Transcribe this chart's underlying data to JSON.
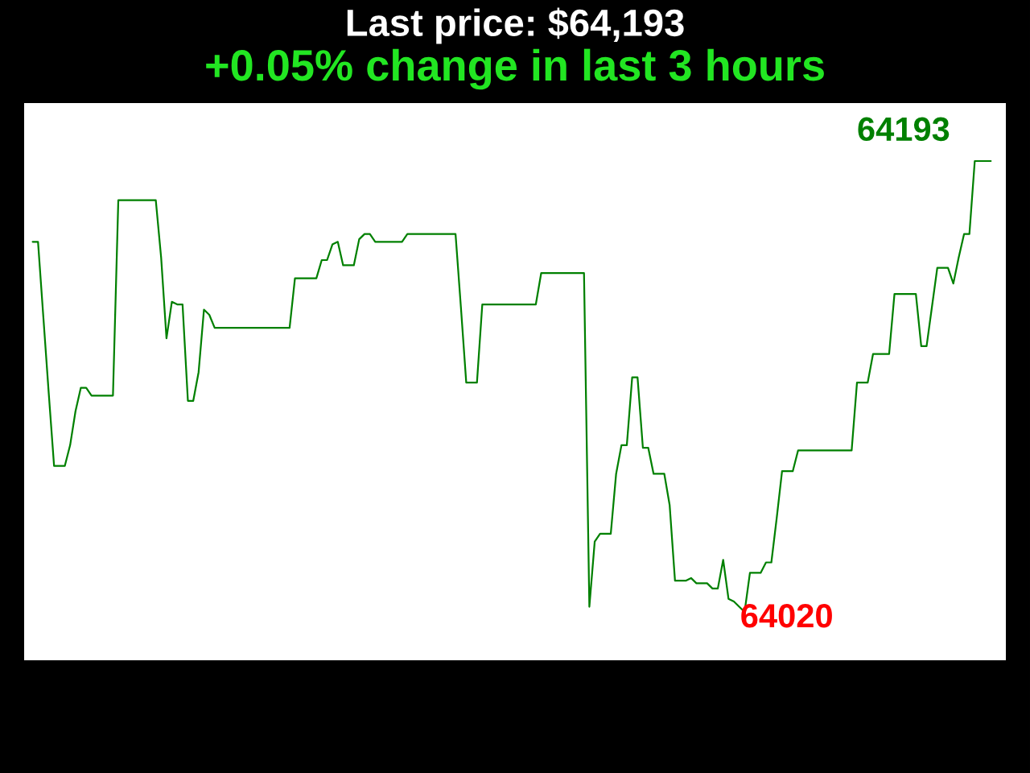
{
  "chart_data": {
    "type": "line",
    "title": "Last price: $64,193",
    "subtitle": "+0.05% change in last 3 hours",
    "categories": [
      null,
      null,
      null,
      null,
      null,
      null,
      null,
      null,
      null,
      null,
      null,
      null,
      null,
      null,
      null,
      null,
      null,
      null,
      null,
      null,
      null,
      null,
      null,
      null,
      null,
      null,
      null,
      null,
      null,
      null,
      null,
      null,
      null,
      null,
      null,
      null,
      null,
      null,
      null,
      null,
      null,
      null,
      null,
      null,
      null,
      null,
      null,
      null,
      null,
      null,
      null,
      null,
      null,
      null,
      null,
      null,
      null,
      null,
      null,
      null,
      null,
      null,
      null,
      null,
      null,
      null,
      null,
      null,
      null,
      null,
      null,
      null,
      null,
      null,
      null,
      null,
      null,
      null,
      null,
      null,
      null,
      null,
      null,
      null,
      null,
      null,
      null,
      null,
      null,
      null,
      null,
      null,
      null,
      null,
      null,
      null,
      null,
      null,
      null,
      null,
      null,
      null,
      null,
      null,
      null,
      null,
      null,
      null,
      null,
      null,
      null,
      null,
      null,
      null,
      null,
      null,
      null,
      null,
      null,
      null,
      null,
      null,
      null,
      null,
      null,
      null,
      null,
      null,
      null,
      null,
      null,
      null,
      null,
      null,
      null,
      null,
      null,
      null,
      null,
      null,
      null,
      null,
      null,
      null,
      null,
      null,
      null,
      null,
      null,
      null,
      null,
      null,
      null,
      null,
      null,
      null,
      null,
      null,
      null,
      null,
      null,
      null,
      null,
      null,
      null,
      null,
      null,
      null,
      null,
      null,
      null,
      null,
      null,
      null,
      null,
      null,
      null,
      null,
      null,
      null
    ],
    "series": [
      {
        "color": "#008000",
        "values": [
          64162,
          64162,
          64133,
          64104,
          64076,
          64076,
          64076,
          64084,
          64097,
          64106,
          64106,
          64103,
          64103,
          64103,
          64103,
          64103,
          64178,
          64178,
          64178,
          64178,
          64178,
          64178,
          64178,
          64178,
          64156,
          64125,
          64139,
          64138,
          64138,
          64101,
          64101,
          64112,
          64136,
          64134,
          64129,
          64129,
          64129,
          64129,
          64129,
          64129,
          64129,
          64129,
          64129,
          64129,
          64129,
          64129,
          64129,
          64129,
          64129,
          64148,
          64148,
          64148,
          64148,
          64148,
          64155,
          64155,
          64161,
          64162,
          64153,
          64153,
          64153,
          64163,
          64165,
          64165,
          64162,
          64162,
          64162,
          64162,
          64162,
          64162,
          64165,
          64165,
          64165,
          64165,
          64165,
          64165,
          64165,
          64165,
          64165,
          64165,
          64137,
          64108,
          64108,
          64108,
          64138,
          64138,
          64138,
          64138,
          64138,
          64138,
          64138,
          64138,
          64138,
          64138,
          64138,
          64150,
          64150,
          64150,
          64150,
          64150,
          64150,
          64150,
          64150,
          64150,
          64022,
          64047,
          64050,
          64050,
          64050,
          64073,
          64084,
          64084,
          64110,
          64110,
          64083,
          64083,
          64073,
          64073,
          64073,
          64061,
          64032,
          64032,
          64032,
          64033,
          64031,
          64031,
          64031,
          64029,
          64029,
          64040,
          64025,
          64024,
          64022,
          64020,
          64035,
          64035,
          64035,
          64039,
          64039,
          64056,
          64074,
          64074,
          64074,
          64082,
          64082,
          64082,
          64082,
          64082,
          64082,
          64082,
          64082,
          64082,
          64082,
          64082,
          64108,
          64108,
          64108,
          64119,
          64119,
          64119,
          64119,
          64142,
          64142,
          64142,
          64142,
          64142,
          64122,
          64122,
          64137,
          64152,
          64152,
          64152,
          64146,
          64156,
          64165,
          64165,
          64193,
          64193,
          64193,
          64193
        ],
        "value_labels": [
          null,
          null,
          null,
          null,
          null,
          null,
          null,
          null,
          null,
          null,
          null,
          null,
          null,
          null,
          null,
          null,
          null,
          null,
          null,
          null,
          null,
          null,
          null,
          null,
          null,
          null,
          null,
          null,
          null,
          null,
          null,
          null,
          null,
          null,
          null,
          null,
          null,
          null,
          null,
          null,
          null,
          null,
          null,
          null,
          null,
          null,
          null,
          null,
          null,
          null,
          null,
          null,
          null,
          null,
          null,
          null,
          null,
          null,
          null,
          null,
          null,
          null,
          null,
          null,
          null,
          null,
          null,
          null,
          null,
          null,
          null,
          null,
          null,
          null,
          null,
          null,
          null,
          null,
          null,
          null,
          null,
          null,
          null,
          null,
          null,
          null,
          null,
          null,
          null,
          null,
          null,
          null,
          null,
          null,
          null,
          null,
          null,
          null,
          null,
          null,
          null,
          null,
          null,
          null,
          null,
          null,
          null,
          null,
          null,
          null,
          null,
          null,
          null,
          null,
          null,
          null,
          null,
          null,
          null,
          null,
          null,
          null,
          null,
          null,
          null,
          null,
          null,
          null,
          null,
          null,
          null,
          null,
          null,
          "64020",
          null,
          null,
          null,
          null,
          null,
          null,
          null,
          null,
          null,
          null,
          null,
          null,
          null,
          null,
          null,
          null,
          null,
          null,
          null,
          null,
          null,
          null,
          null,
          null,
          null,
          null,
          null,
          null,
          null,
          null,
          null,
          null,
          null,
          null,
          null,
          null,
          null,
          null,
          null,
          null,
          null,
          null,
          "64193",
          null,
          null,
          null
        ]
      }
    ]
  }
}
